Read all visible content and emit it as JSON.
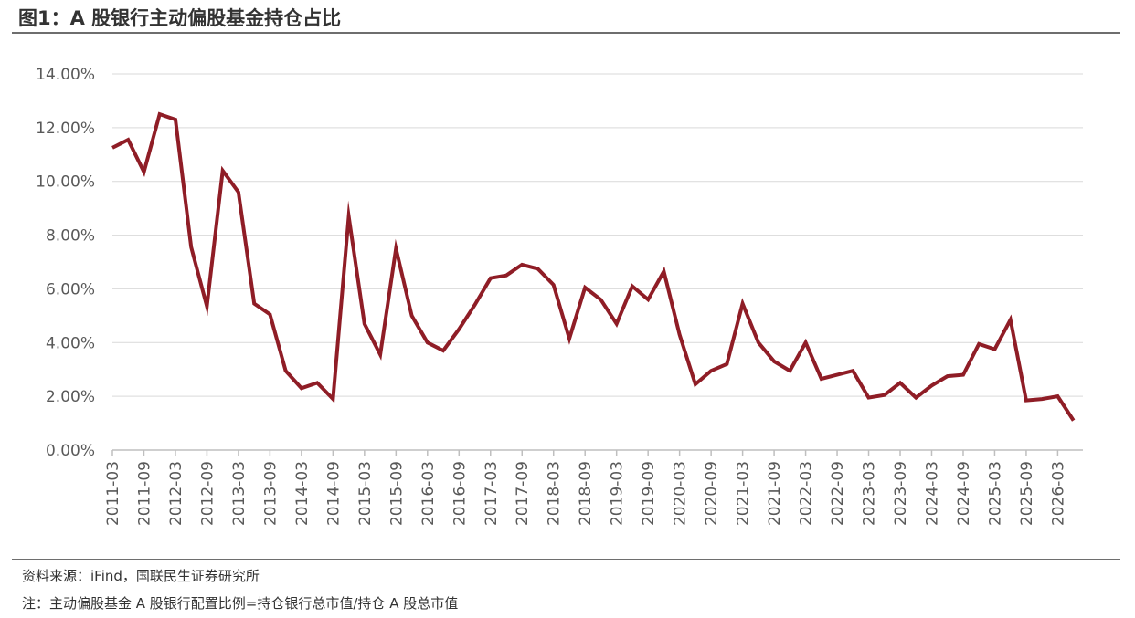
{
  "header": {
    "title": "图1：A 股银行主动偏股基金持仓占比"
  },
  "footer": {
    "source": "资料来源：iFind，国联民生证券研究所",
    "note": "注：主动偏股基金 A 股银行配置比例=持仓银行总市值/持仓 A 股总市值"
  },
  "colors": {
    "line": "#8f1d26",
    "grid": "#d9d9d9",
    "axis": "#bfbfbf",
    "text": "#595959"
  },
  "chart_data": {
    "type": "line",
    "title": "",
    "xlabel": "",
    "ylabel": "",
    "ylim": [
      0,
      14
    ],
    "y_unit": "%",
    "y_ticks": [
      "0.00%",
      "2.00%",
      "4.00%",
      "6.00%",
      "8.00%",
      "10.00%",
      "12.00%",
      "14.00%"
    ],
    "x_ticks": [
      "2011-03",
      "2011-09",
      "2012-03",
      "2012-09",
      "2013-03",
      "2013-09",
      "2014-03",
      "2014-09",
      "2015-03",
      "2015-09",
      "2016-03",
      "2016-09",
      "2017-03",
      "2017-09",
      "2018-03",
      "2018-09",
      "2019-03",
      "2019-09",
      "2020-03",
      "2020-09",
      "2021-03",
      "2021-09",
      "2022-03",
      "2022-09",
      "2023-03",
      "2023-09",
      "2024-03",
      "2024-09",
      "2025-03",
      "2025-09",
      "2026-03"
    ],
    "grid": true,
    "legend": "none",
    "series": [
      {
        "x": [
          "2011-03",
          "2011-06",
          "2011-09",
          "2011-12",
          "2012-03",
          "2012-06",
          "2012-09",
          "2012-12",
          "2013-03",
          "2013-06",
          "2013-09",
          "2013-12",
          "2014-03",
          "2014-06",
          "2014-09",
          "2014-12",
          "2015-03",
          "2015-06",
          "2015-09",
          "2015-12",
          "2016-03",
          "2016-06",
          "2016-09",
          "2016-12",
          "2017-03",
          "2017-06",
          "2017-09",
          "2017-12",
          "2018-03",
          "2018-06",
          "2018-09",
          "2018-12",
          "2019-03",
          "2019-06",
          "2019-09",
          "2019-12",
          "2020-03",
          "2020-06",
          "2020-09",
          "2020-12",
          "2021-03",
          "2021-06",
          "2021-09",
          "2021-12",
          "2022-03",
          "2022-06",
          "2022-09",
          "2022-12",
          "2023-03",
          "2023-06",
          "2023-09",
          "2023-12",
          "2024-03",
          "2024-06",
          "2024-09",
          "2024-12",
          "2025-03",
          "2025-06",
          "2025-09",
          "2025-12",
          "2026-03",
          "2026-06"
        ],
        "values": [
          11.25,
          11.55,
          10.35,
          12.5,
          12.3,
          7.55,
          5.35,
          10.4,
          9.6,
          5.45,
          5.05,
          2.95,
          2.3,
          2.5,
          1.9,
          8.7,
          4.7,
          3.55,
          7.5,
          5.0,
          4.0,
          3.7,
          4.5,
          5.4,
          6.4,
          6.5,
          6.9,
          6.75,
          6.15,
          4.15,
          6.05,
          5.6,
          4.7,
          6.1,
          5.6,
          6.65,
          4.3,
          2.45,
          2.95,
          3.2,
          5.45,
          4.0,
          3.3,
          2.95,
          4.0,
          2.65,
          2.8,
          2.95,
          1.95,
          2.05,
          2.5,
          1.95,
          2.4,
          2.75,
          2.8,
          3.95,
          3.75,
          4.85,
          1.85,
          1.9,
          2.0,
          1.1
        ]
      }
    ]
  }
}
